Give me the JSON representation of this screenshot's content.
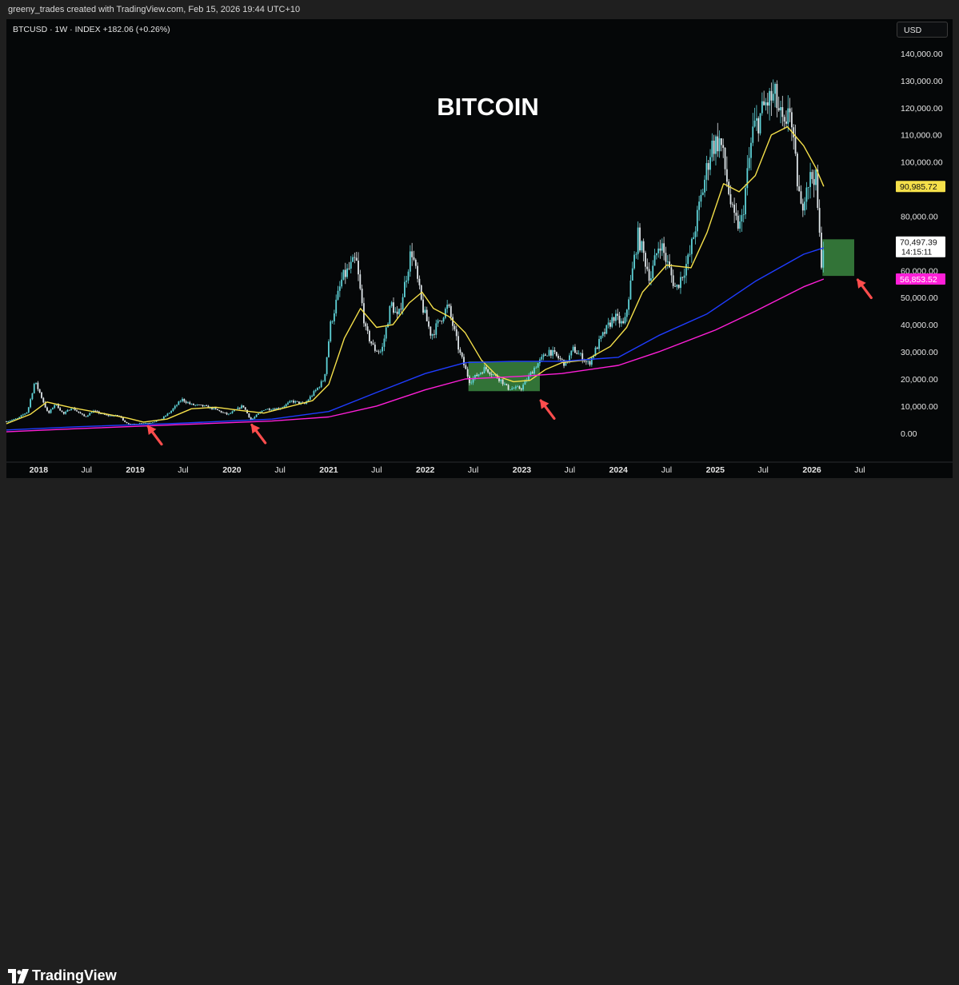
{
  "header": {
    "credit": "greeny_trades created with TradingView.com, Feb 15, 2026 19:44 UTC+10"
  },
  "symbol_line": "BTCUSD · 1W · INDEX  +182.06 (+0.26%)",
  "currency": "USD",
  "brand": "TradingView",
  "colors": {
    "background": "#050708",
    "candle_up": "#5fd3d8",
    "candle_down": "#dfe6ea",
    "ma_short": "#f5e04a",
    "ma_mid": "#1f3cff",
    "ma_long": "#ff1fd8",
    "zone": "#3d8f44",
    "arrow": "#ff4d4d"
  },
  "chart_data": {
    "type": "line",
    "title": "BITCOIN",
    "xlabel": "",
    "ylabel": "",
    "y_axis_side": "right",
    "ylim": [
      -3000,
      145000
    ],
    "y_ticks": [
      0,
      10000,
      20000,
      30000,
      40000,
      50000,
      60000,
      80000,
      100000,
      110000,
      120000,
      130000,
      140000
    ],
    "y_tick_labels": [
      "0.00",
      "10,000.00",
      "20,000.00",
      "30,000.00",
      "40,000.00",
      "50,000.00",
      "60,000.00",
      "80,000.00",
      "100,000.00",
      "110,000.00",
      "120,000.00",
      "130,000.00",
      "140,000.00"
    ],
    "x_range": [
      "2017-09-01",
      "2026-10-15"
    ],
    "x_ticks": [
      {
        "date": "2018-01-01",
        "label": "2018",
        "major": true
      },
      {
        "date": "2018-07-01",
        "label": "Jul",
        "major": false
      },
      {
        "date": "2019-01-01",
        "label": "2019",
        "major": true
      },
      {
        "date": "2019-07-01",
        "label": "Jul",
        "major": false
      },
      {
        "date": "2020-01-01",
        "label": "2020",
        "major": true
      },
      {
        "date": "2020-07-01",
        "label": "Jul",
        "major": false
      },
      {
        "date": "2021-01-01",
        "label": "2021",
        "major": true
      },
      {
        "date": "2021-07-01",
        "label": "Jul",
        "major": false
      },
      {
        "date": "2022-01-01",
        "label": "2022",
        "major": true
      },
      {
        "date": "2022-07-01",
        "label": "Jul",
        "major": false
      },
      {
        "date": "2023-01-01",
        "label": "2023",
        "major": true
      },
      {
        "date": "2023-07-01",
        "label": "Jul",
        "major": false
      },
      {
        "date": "2024-01-01",
        "label": "2024",
        "major": true
      },
      {
        "date": "2024-07-01",
        "label": "Jul",
        "major": false
      },
      {
        "date": "2025-01-01",
        "label": "2025",
        "major": true
      },
      {
        "date": "2025-07-01",
        "label": "Jul",
        "major": false
      },
      {
        "date": "2026-01-01",
        "label": "2026",
        "major": true
      },
      {
        "date": "2026-07-01",
        "label": "Jul",
        "major": false
      }
    ],
    "price_points": [
      [
        "2017-09-01",
        4300
      ],
      [
        "2017-10-15",
        5500
      ],
      [
        "2017-11-20",
        8000
      ],
      [
        "2017-12-17",
        19000
      ],
      [
        "2018-01-05",
        15000
      ],
      [
        "2018-02-06",
        7000
      ],
      [
        "2018-03-05",
        11000
      ],
      [
        "2018-04-05",
        7000
      ],
      [
        "2018-05-05",
        9500
      ],
      [
        "2018-06-25",
        6000
      ],
      [
        "2018-07-25",
        8200
      ],
      [
        "2018-09-15",
        6500
      ],
      [
        "2018-11-01",
        6400
      ],
      [
        "2018-11-25",
        4000
      ],
      [
        "2018-12-15",
        3200
      ],
      [
        "2019-01-15",
        3600
      ],
      [
        "2019-03-01",
        3900
      ],
      [
        "2019-04-10",
        5200
      ],
      [
        "2019-05-15",
        8000
      ],
      [
        "2019-06-26",
        12500
      ],
      [
        "2019-08-01",
        10500
      ],
      [
        "2019-09-15",
        10000
      ],
      [
        "2019-10-25",
        9000
      ],
      [
        "2019-12-17",
        6800
      ],
      [
        "2020-02-12",
        10200
      ],
      [
        "2020-03-13",
        4800
      ],
      [
        "2020-05-01",
        8800
      ],
      [
        "2020-07-01",
        9200
      ],
      [
        "2020-08-15",
        11800
      ],
      [
        "2020-10-01",
        10700
      ],
      [
        "2020-11-15",
        16000
      ],
      [
        "2020-12-15",
        20000
      ],
      [
        "2021-01-08",
        40000
      ],
      [
        "2021-02-21",
        57000
      ],
      [
        "2021-04-14",
        64000
      ],
      [
        "2021-05-20",
        38000
      ],
      [
        "2021-06-22",
        31000
      ],
      [
        "2021-07-20",
        30000
      ],
      [
        "2021-08-25",
        48000
      ],
      [
        "2021-09-20",
        42000
      ],
      [
        "2021-11-10",
        68000
      ],
      [
        "2021-12-20",
        47000
      ],
      [
        "2022-01-24",
        36000
      ],
      [
        "2022-03-28",
        47000
      ],
      [
        "2022-05-10",
        30000
      ],
      [
        "2022-06-18",
        19000
      ],
      [
        "2022-08-15",
        24000
      ],
      [
        "2022-10-15",
        19500
      ],
      [
        "2022-11-09",
        16500
      ],
      [
        "2022-12-30",
        16600
      ],
      [
        "2023-02-20",
        24500
      ],
      [
        "2023-04-14",
        30500
      ],
      [
        "2023-06-15",
        25500
      ],
      [
        "2023-07-15",
        31000
      ],
      [
        "2023-09-11",
        25500
      ],
      [
        "2023-10-25",
        34500
      ],
      [
        "2023-12-15",
        43000
      ],
      [
        "2024-01-23",
        39500
      ],
      [
        "2024-03-14",
        73000
      ],
      [
        "2024-05-01",
        57000
      ],
      [
        "2024-06-05",
        71000
      ],
      [
        "2024-08-05",
        53000
      ],
      [
        "2024-09-25",
        65000
      ],
      [
        "2024-11-15",
        90000
      ],
      [
        "2024-12-17",
        106000
      ],
      [
        "2025-01-20",
        108000
      ],
      [
        "2025-03-10",
        79000
      ],
      [
        "2025-04-08",
        76000
      ],
      [
        "2025-05-22",
        111000
      ],
      [
        "2025-07-14",
        122000
      ],
      [
        "2025-08-14",
        124000
      ],
      [
        "2025-09-25",
        109000
      ],
      [
        "2025-10-06",
        126000
      ],
      [
        "2025-10-20",
        108000
      ],
      [
        "2025-11-21",
        82000
      ],
      [
        "2025-12-10",
        92000
      ],
      [
        "2026-01-14",
        96000
      ],
      [
        "2026-02-05",
        63000
      ],
      [
        "2026-02-15",
        70497
      ]
    ],
    "series": [
      {
        "points": [
          [
            "2017-09-01",
            3500
          ],
          [
            "2017-12-01",
            7000
          ],
          [
            "2018-02-01",
            11500
          ],
          [
            "2018-05-01",
            9500
          ],
          [
            "2018-09-01",
            7300
          ],
          [
            "2018-12-01",
            5600
          ],
          [
            "2019-02-01",
            4100
          ],
          [
            "2019-05-01",
            5200
          ],
          [
            "2019-08-01",
            9000
          ],
          [
            "2019-11-01",
            9600
          ],
          [
            "2020-02-01",
            8400
          ],
          [
            "2020-05-01",
            7400
          ],
          [
            "2020-08-01",
            9700
          ],
          [
            "2020-11-01",
            12000
          ],
          [
            "2021-01-01",
            18000
          ],
          [
            "2021-03-01",
            35000
          ],
          [
            "2021-05-01",
            46000
          ],
          [
            "2021-07-01",
            39000
          ],
          [
            "2021-09-01",
            40000
          ],
          [
            "2021-11-01",
            48000
          ],
          [
            "2021-12-20",
            52000
          ],
          [
            "2022-02-01",
            46000
          ],
          [
            "2022-04-01",
            43000
          ],
          [
            "2022-06-01",
            37000
          ],
          [
            "2022-08-01",
            27000
          ],
          [
            "2022-10-01",
            21000
          ],
          [
            "2022-12-01",
            19000
          ],
          [
            "2023-02-01",
            19500
          ],
          [
            "2023-04-01",
            23500
          ],
          [
            "2023-06-01",
            26000
          ],
          [
            "2023-09-01",
            27000
          ],
          [
            "2023-12-01",
            32000
          ],
          [
            "2024-02-01",
            39000
          ],
          [
            "2024-04-01",
            52000
          ],
          [
            "2024-07-01",
            62000
          ],
          [
            "2024-10-01",
            61000
          ],
          [
            "2024-12-01",
            74000
          ],
          [
            "2025-02-01",
            92000
          ],
          [
            "2025-04-01",
            89000
          ],
          [
            "2025-06-01",
            95000
          ],
          [
            "2025-08-01",
            110000
          ],
          [
            "2025-10-01",
            113000
          ],
          [
            "2025-12-01",
            106000
          ],
          [
            "2026-01-15",
            98000
          ],
          [
            "2026-02-15",
            90985.72
          ]
        ],
        "last_value_label": "90,985.72"
      },
      {
        "points": [
          [
            "2017-09-01",
            1200
          ],
          [
            "2018-06-01",
            2400
          ],
          [
            "2019-06-01",
            3600
          ],
          [
            "2020-06-01",
            5200
          ],
          [
            "2021-01-01",
            8000
          ],
          [
            "2021-07-01",
            15000
          ],
          [
            "2022-01-01",
            22000
          ],
          [
            "2022-06-01",
            26000
          ],
          [
            "2022-12-01",
            26500
          ],
          [
            "2023-06-01",
            26500
          ],
          [
            "2024-01-01",
            28000
          ],
          [
            "2024-06-01",
            36000
          ],
          [
            "2024-12-01",
            44000
          ],
          [
            "2025-06-01",
            56000
          ],
          [
            "2025-12-01",
            66000
          ],
          [
            "2026-02-15",
            68373.63
          ]
        ],
        "last_value_label": "68,373.63"
      },
      {
        "points": [
          [
            "2017-09-01",
            500
          ],
          [
            "2018-06-01",
            1700
          ],
          [
            "2019-06-01",
            3100
          ],
          [
            "2020-06-01",
            4500
          ],
          [
            "2021-01-01",
            6000
          ],
          [
            "2021-07-01",
            10000
          ],
          [
            "2022-01-01",
            16000
          ],
          [
            "2022-06-01",
            20000
          ],
          [
            "2023-01-01",
            21000
          ],
          [
            "2023-06-01",
            22000
          ],
          [
            "2024-01-01",
            25000
          ],
          [
            "2024-06-01",
            30000
          ],
          [
            "2025-01-01",
            38000
          ],
          [
            "2025-06-01",
            45000
          ],
          [
            "2025-12-01",
            54000
          ],
          [
            "2026-02-15",
            56853.52
          ]
        ],
        "last_value_label": "56,853.52"
      }
    ],
    "price_label": {
      "value": 70497.39,
      "label": "70,497.39",
      "countdown": "14:15:11"
    },
    "annotations": {
      "zones": [
        {
          "from": "2022-06-13",
          "to": "2023-03-10",
          "low": 15500,
          "high": 26500
        },
        {
          "from": "2026-02-10",
          "to": "2026-06-10",
          "low": 58000,
          "high": 71500
        }
      ],
      "arrows": [
        {
          "target": [
            "2019-02-15",
            3000
          ],
          "direction": "down-right"
        },
        {
          "target": [
            "2020-03-13",
            3500
          ],
          "direction": "down-right"
        },
        {
          "target": [
            "2023-03-10",
            12500
          ],
          "direction": "down-right"
        },
        {
          "target": [
            "2026-06-20",
            57000
          ],
          "direction": "down-right"
        }
      ]
    }
  }
}
